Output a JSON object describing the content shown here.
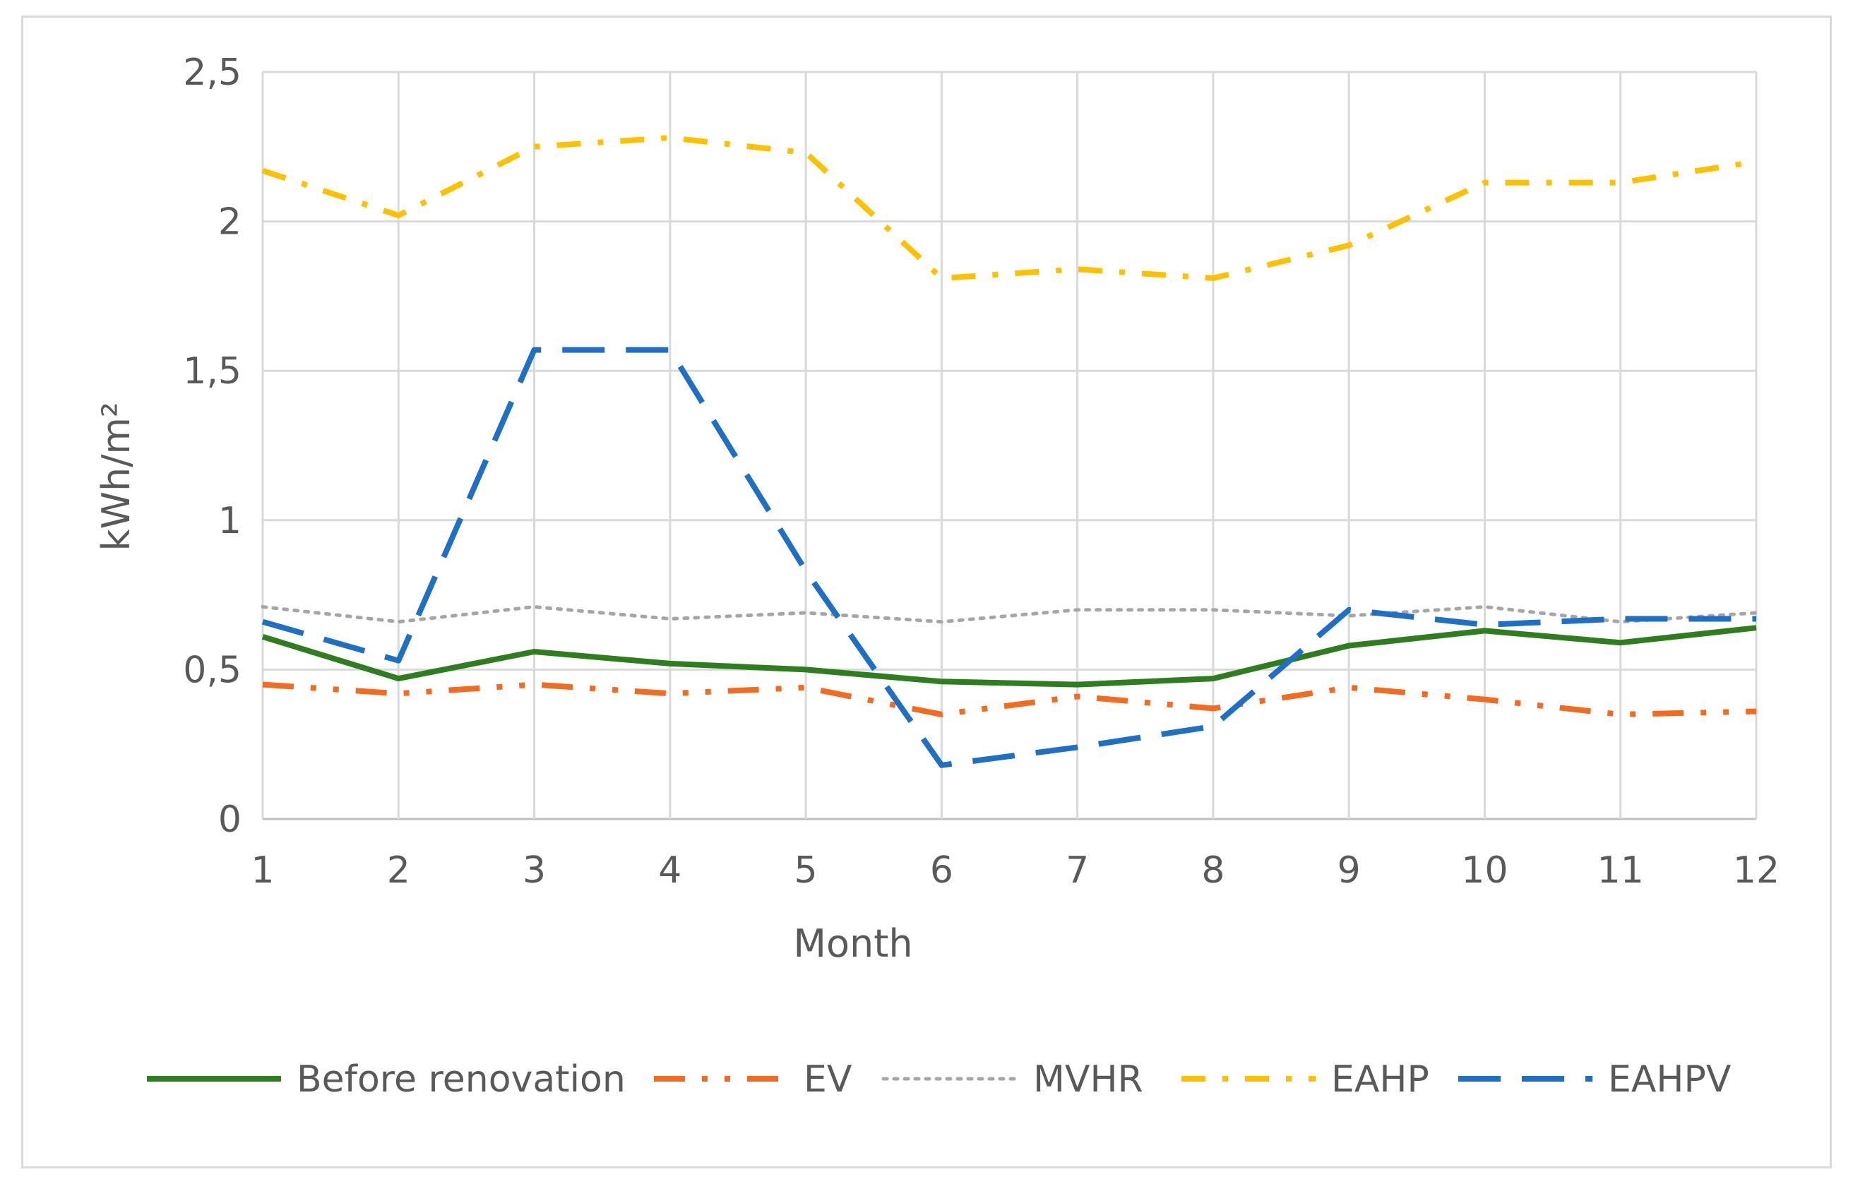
{
  "chart_data": {
    "type": "line",
    "title": "",
    "xlabel": "Month",
    "ylabel": "kWh/m²",
    "x": [
      1,
      2,
      3,
      4,
      5,
      6,
      7,
      8,
      9,
      10,
      11,
      12
    ],
    "x_tick_labels": [
      "1",
      "2",
      "3",
      "4",
      "5",
      "6",
      "7",
      "8",
      "9",
      "10",
      "11",
      "12"
    ],
    "ylim": [
      0,
      2.5
    ],
    "y_ticks": [
      0,
      0.5,
      1,
      1.5,
      2,
      2.5
    ],
    "y_tick_labels": [
      "0",
      "0,5",
      "1",
      "1,5",
      "2",
      "2,5"
    ],
    "grid": true,
    "legend_position": "bottom",
    "series": [
      {
        "name": "Before renovation",
        "color": "#2e7d1f",
        "dash": "solid",
        "values": [
          0.61,
          0.47,
          0.56,
          0.52,
          0.5,
          0.46,
          0.45,
          0.47,
          0.58,
          0.63,
          0.59,
          0.64
        ]
      },
      {
        "name": "EV",
        "color": "#f26b21",
        "dash": "long-dash-dot-dot",
        "values": [
          0.45,
          0.42,
          0.45,
          0.42,
          0.44,
          0.35,
          0.41,
          0.37,
          0.44,
          0.4,
          0.35,
          0.36
        ]
      },
      {
        "name": "MVHR",
        "color": "#a6a6a6",
        "dash": "dotted",
        "values": [
          0.71,
          0.66,
          0.71,
          0.67,
          0.69,
          0.66,
          0.7,
          0.7,
          0.68,
          0.71,
          0.66,
          0.69
        ]
      },
      {
        "name": "EAHP",
        "color": "#ffc000",
        "dash": "dash-dot",
        "values": [
          2.17,
          2.02,
          2.25,
          2.28,
          2.23,
          1.81,
          1.84,
          1.81,
          1.92,
          2.13,
          2.13,
          2.2
        ]
      },
      {
        "name": "EAHPV",
        "color": "#1f6fc5",
        "dash": "long-dash",
        "values": [
          0.66,
          0.53,
          1.57,
          1.57,
          0.83,
          0.18,
          0.24,
          0.31,
          0.7,
          0.65,
          0.67,
          0.67
        ]
      }
    ]
  }
}
